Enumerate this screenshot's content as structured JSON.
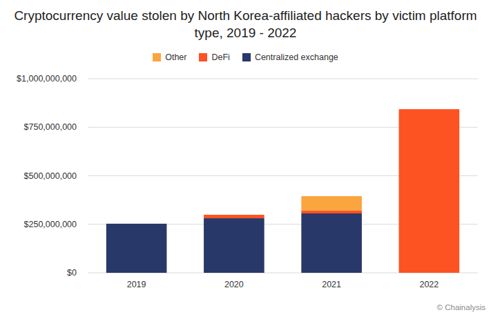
{
  "chart_data": {
    "type": "bar",
    "title": "Cryptocurrency value stolen by North Korea-affiliated hackers by victim platform type, 2019 - 2022",
    "categories": [
      "2019",
      "2020",
      "2021",
      "2022"
    ],
    "series": [
      {
        "name": "Other",
        "color": "#fba53f",
        "values": [
          0,
          0,
          75000000,
          0
        ]
      },
      {
        "name": "DeFi",
        "color": "#fd5222",
        "values": [
          0,
          18000000,
          14000000,
          843000000
        ]
      },
      {
        "name": "Centralized exchange",
        "color": "#283868",
        "values": [
          253000000,
          281000000,
          306000000,
          0
        ]
      }
    ],
    "ylim": [
      0,
      1000000000
    ],
    "yticks": [
      {
        "value": 0,
        "label": "$0"
      },
      {
        "value": 250000000,
        "label": "$250,000,000"
      },
      {
        "value": 500000000,
        "label": "$500,000,000"
      },
      {
        "value": 750000000,
        "label": "$750,000,000"
      },
      {
        "value": 1000000000,
        "label": "$1,000,000,000"
      }
    ],
    "grid": true,
    "stacked": true,
    "legend": "top",
    "source": "© Chainalysis"
  }
}
